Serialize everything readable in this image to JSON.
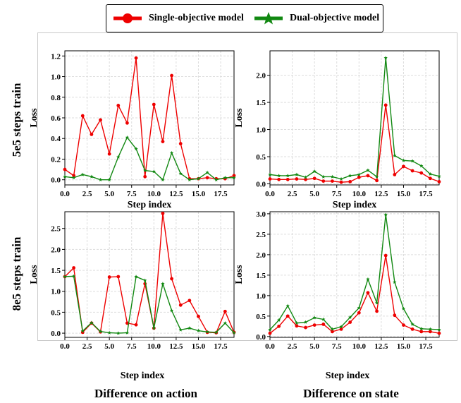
{
  "legend": {
    "single_label": "Single-objective model",
    "dual_label": "Dual-objective model"
  },
  "colors": {
    "single": "#ee0000",
    "dual": "#118811"
  },
  "row_titles": [
    "5e5 steps train",
    "8e5 steps train"
  ],
  "column_titles": [
    "Difference on action",
    "Difference on state"
  ],
  "bottom_xlabels": [
    "Step index",
    "Step index"
  ],
  "chart_data": [
    {
      "type": "line",
      "xlabel": "Step index",
      "ylabel": "Loss",
      "x": [
        0,
        1,
        2,
        3,
        4,
        5,
        6,
        7,
        8,
        9,
        10,
        11,
        12,
        13,
        14,
        15,
        16,
        17,
        18,
        19
      ],
      "xlim": [
        0,
        19
      ],
      "ylim": [
        -0.05,
        1.25
      ],
      "xticks": [
        0.0,
        2.5,
        5.0,
        7.5,
        10.0,
        12.5,
        15.0,
        17.5
      ],
      "yticks": [
        0.0,
        0.2,
        0.4,
        0.6,
        0.8,
        1.0,
        1.2
      ],
      "grid": true,
      "series": [
        {
          "name": "Single-objective model",
          "values": [
            0.1,
            0.04,
            0.62,
            0.44,
            0.58,
            0.25,
            0.72,
            0.55,
            1.18,
            0.03,
            0.73,
            0.37,
            1.01,
            0.35,
            0.01,
            0.01,
            0.02,
            0.01,
            0.01,
            0.04
          ]
        },
        {
          "name": "Dual-objective model",
          "values": [
            0.03,
            0.02,
            0.05,
            0.03,
            0.0,
            0.0,
            0.22,
            0.41,
            0.3,
            0.09,
            0.08,
            0.0,
            0.26,
            0.06,
            0.0,
            0.01,
            0.07,
            0.0,
            0.02,
            0.02
          ]
        }
      ]
    },
    {
      "type": "line",
      "xlabel": "Step index",
      "ylabel": "Loss",
      "x": [
        0,
        1,
        2,
        3,
        4,
        5,
        6,
        7,
        8,
        9,
        10,
        11,
        12,
        13,
        14,
        15,
        16,
        17,
        18,
        19
      ],
      "xlim": [
        0,
        19
      ],
      "ylim": [
        -0.02,
        2.45
      ],
      "xticks": [
        0.0,
        2.5,
        5.0,
        7.5,
        10.0,
        12.5,
        15.0,
        17.5
      ],
      "yticks": [
        0.0,
        0.5,
        1.0,
        1.5,
        2.0
      ],
      "grid": true,
      "series": [
        {
          "name": "Single-objective model",
          "values": [
            0.09,
            0.08,
            0.08,
            0.09,
            0.08,
            0.1,
            0.05,
            0.05,
            0.03,
            0.04,
            0.12,
            0.15,
            0.06,
            1.45,
            0.17,
            0.32,
            0.24,
            0.2,
            0.1,
            0.04
          ]
        },
        {
          "name": "Dual-objective model",
          "values": [
            0.17,
            0.15,
            0.15,
            0.17,
            0.12,
            0.23,
            0.13,
            0.13,
            0.09,
            0.15,
            0.17,
            0.25,
            0.13,
            2.32,
            0.52,
            0.43,
            0.42,
            0.33,
            0.18,
            0.14
          ]
        }
      ]
    },
    {
      "type": "line",
      "xlabel": "",
      "ylabel": "Loss",
      "x": [
        0,
        1,
        2,
        3,
        4,
        5,
        6,
        7,
        8,
        9,
        10,
        11,
        12,
        13,
        14,
        15,
        16,
        17,
        18,
        19
      ],
      "xlim": [
        0,
        19
      ],
      "ylim": [
        -0.1,
        2.9
      ],
      "xticks": [
        0.0,
        2.5,
        5.0,
        7.5,
        10.0,
        12.5,
        15.0,
        17.5
      ],
      "yticks": [
        0.0,
        0.5,
        1.0,
        1.5,
        2.0,
        2.5
      ],
      "grid": true,
      "series": [
        {
          "name": "Single-objective model",
          "values": [
            1.35,
            1.56,
            0.02,
            0.24,
            0.03,
            1.34,
            1.35,
            0.24,
            0.2,
            1.18,
            0.12,
            2.86,
            1.3,
            0.67,
            0.78,
            0.4,
            0.02,
            0.01,
            0.52,
            0.02
          ]
        },
        {
          "name": "Dual-objective model",
          "values": [
            1.35,
            1.36,
            0.05,
            0.25,
            0.04,
            0.01,
            0.0,
            0.01,
            1.35,
            1.26,
            0.12,
            1.18,
            0.54,
            0.08,
            0.12,
            0.06,
            0.03,
            0.02,
            0.24,
            0.01
          ]
        }
      ]
    },
    {
      "type": "line",
      "xlabel": "",
      "ylabel": "Loss",
      "x": [
        0,
        1,
        2,
        3,
        4,
        5,
        6,
        7,
        8,
        9,
        10,
        11,
        12,
        13,
        14,
        15,
        16,
        17,
        18,
        19
      ],
      "xlim": [
        0,
        19
      ],
      "ylim": [
        -0.02,
        3.05
      ],
      "xticks": [
        0.0,
        2.5,
        5.0,
        7.5,
        10.0,
        12.5,
        15.0,
        17.5
      ],
      "yticks": [
        0.0,
        0.5,
        1.0,
        1.5,
        2.0,
        2.5,
        3.0
      ],
      "grid": true,
      "series": [
        {
          "name": "Single-objective model",
          "values": [
            0.08,
            0.25,
            0.5,
            0.26,
            0.22,
            0.28,
            0.3,
            0.12,
            0.18,
            0.35,
            0.58,
            1.07,
            0.62,
            1.98,
            0.52,
            0.28,
            0.18,
            0.12,
            0.12,
            0.08
          ]
        },
        {
          "name": "Dual-objective model",
          "values": [
            0.17,
            0.4,
            0.75,
            0.33,
            0.35,
            0.46,
            0.42,
            0.18,
            0.24,
            0.47,
            0.7,
            1.4,
            0.82,
            2.98,
            1.33,
            0.68,
            0.3,
            0.19,
            0.18,
            0.17
          ]
        }
      ]
    }
  ]
}
